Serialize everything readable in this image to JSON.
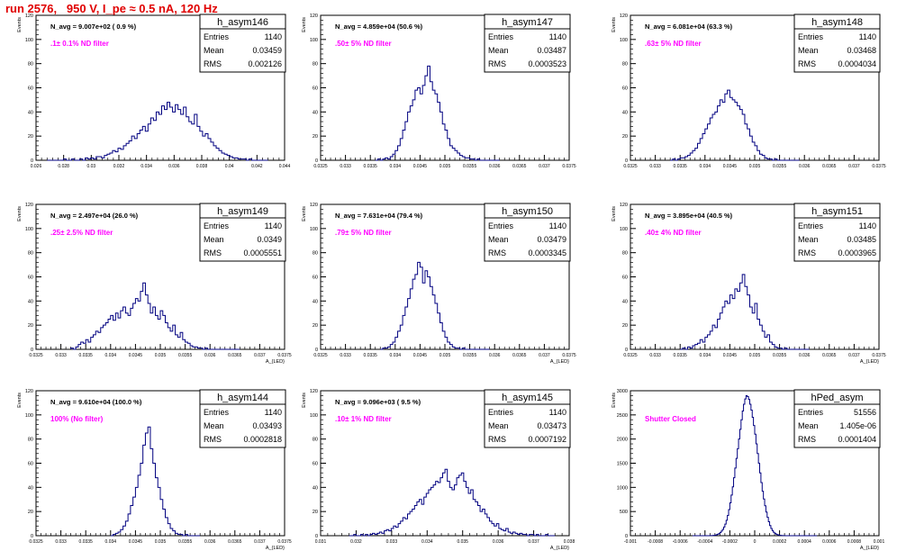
{
  "page_title": "run 2576,   950 V, I_pe ≈ 0.5 nA, 120 Hz",
  "colors": {
    "histogram": "#000080",
    "annotation": "#ff00ff",
    "title": "#e00000"
  },
  "chart_data": [
    {
      "type": "bar",
      "name": "h_asym146",
      "stats": {
        "entries": "1140",
        "mean": "0.03459",
        "rms": "0.002126"
      },
      "n_avg": "N_avg = 9.007e+02 ( 0.9 %)",
      "filter": ".1± 0.1% ND filter",
      "xlim": [
        0.026,
        0.044
      ],
      "ylim": [
        0,
        120
      ],
      "xticks": [
        0.026,
        0.028,
        0.03,
        0.032,
        0.034,
        0.036,
        0.038,
        0.04,
        0.042,
        0.044
      ],
      "xticklabels": [
        "0.026",
        "0.028",
        "0.03",
        "0.032",
        "0.034",
        "0.036",
        "0.038",
        "0.04",
        "0.042",
        "0.044"
      ],
      "yticks": [
        0,
        20,
        40,
        60,
        80,
        100,
        120
      ],
      "ylabel": "Events",
      "xlabel": "",
      "bin_edges": [
        0.0268,
        0.0428
      ],
      "values": [
        0,
        0,
        0,
        0,
        0,
        0,
        1,
        0,
        0,
        1,
        0,
        0,
        1,
        0,
        2,
        1,
        2,
        1,
        3,
        3,
        2,
        4,
        5,
        6,
        8,
        7,
        10,
        9,
        12,
        14,
        16,
        20,
        18,
        22,
        25,
        28,
        24,
        30,
        35,
        33,
        40,
        38,
        45,
        42,
        48,
        44,
        40,
        46,
        42,
        38,
        44,
        36,
        32,
        30,
        38,
        28,
        24,
        20,
        22,
        18,
        15,
        12,
        10,
        8,
        6,
        5,
        4,
        3,
        2,
        2,
        1,
        1,
        1,
        0,
        1,
        0,
        0,
        0,
        0,
        0,
        0
      ]
    },
    {
      "type": "bar",
      "name": "h_asym147",
      "stats": {
        "entries": "1140",
        "mean": "0.03487",
        "rms": "0.0003523"
      },
      "n_avg": "N_avg = 4.859e+04 (50.6 %)",
      "filter": ".50± 5% ND filter",
      "xlim": [
        0.0325,
        0.0375
      ],
      "ylim": [
        0,
        120
      ],
      "xticks": [
        0.0325,
        0.033,
        0.0335,
        0.034,
        0.0345,
        0.035,
        0.0355,
        0.036,
        0.0365,
        0.037,
        0.0375
      ],
      "xticklabels": [
        "0.0325",
        "0.033",
        "0.0335",
        "0.034",
        "0.0345",
        "0.035",
        "0.0355",
        "0.036",
        "0.0365",
        "0.037",
        "0.0375"
      ],
      "yticks": [
        0,
        20,
        40,
        60,
        80,
        100,
        120
      ],
      "ylabel": "Events",
      "xlabel": "",
      "bin_edges": [
        0.0336,
        0.0361
      ],
      "values": [
        0,
        1,
        0,
        1,
        2,
        1,
        3,
        5,
        8,
        12,
        18,
        25,
        32,
        40,
        45,
        50,
        58,
        60,
        55,
        62,
        70,
        78,
        65,
        58,
        55,
        48,
        40,
        30,
        25,
        18,
        12,
        10,
        8,
        6,
        4,
        3,
        2,
        2,
        1,
        1,
        0,
        1,
        0,
        0,
        0,
        0,
        0,
        0,
        0,
        0
      ]
    },
    {
      "type": "bar",
      "name": "h_asym148",
      "stats": {
        "entries": "1140",
        "mean": "0.03468",
        "rms": "0.0004034"
      },
      "n_avg": "N_avg = 6.081e+04 (63.3 %)",
      "filter": ".63± 5% ND filter",
      "xlim": [
        0.0325,
        0.0375
      ],
      "ylim": [
        0,
        120
      ],
      "xticks": [
        0.0325,
        0.033,
        0.0335,
        0.034,
        0.0345,
        0.035,
        0.0355,
        0.036,
        0.0365,
        0.037,
        0.0375
      ],
      "xticklabels": [
        "0.0325",
        "0.033",
        "0.0335",
        "0.034",
        "0.0345",
        "0.035",
        "0.0355",
        "0.036",
        "0.0365",
        "0.037",
        "0.0375"
      ],
      "yticks": [
        0,
        20,
        40,
        60,
        80,
        100,
        120
      ],
      "ylabel": "Events",
      "xlabel": "",
      "bin_edges": [
        0.0333,
        0.0359
      ],
      "values": [
        0,
        1,
        0,
        1,
        2,
        2,
        3,
        4,
        6,
        8,
        10,
        14,
        18,
        22,
        26,
        30,
        35,
        38,
        40,
        45,
        50,
        48,
        55,
        58,
        52,
        50,
        48,
        45,
        42,
        38,
        30,
        26,
        20,
        15,
        12,
        8,
        5,
        4,
        2,
        1,
        1,
        0,
        1,
        0,
        0,
        0,
        0,
        0,
        0,
        0,
        0,
        0
      ]
    },
    {
      "type": "bar",
      "name": "h_asym149",
      "stats": {
        "entries": "1140",
        "mean": "0.0349",
        "rms": "0.0005551"
      },
      "n_avg": "N_avg = 2.497e+04 (26.0 %)",
      "filter": ".25± 2.5% ND filter",
      "xlim": [
        0.0325,
        0.0375
      ],
      "ylim": [
        0,
        120
      ],
      "xticks": [
        0.0325,
        0.033,
        0.0335,
        0.034,
        0.0345,
        0.035,
        0.0355,
        0.036,
        0.0365,
        0.037,
        0.0375
      ],
      "xticklabels": [
        "0.0325",
        "0.033",
        "0.0335",
        "0.034",
        "0.0345",
        "0.035",
        "0.0355",
        "0.036",
        "0.0365",
        "0.037",
        "0.0375"
      ],
      "yticks": [
        0,
        20,
        40,
        60,
        80,
        100,
        120
      ],
      "ylabel": "Events",
      "xlabel": "A_{LED}",
      "bin_edges": [
        0.0332,
        0.0366
      ],
      "values": [
        1,
        0,
        2,
        4,
        6,
        5,
        8,
        6,
        10,
        12,
        15,
        14,
        18,
        20,
        22,
        25,
        28,
        24,
        30,
        26,
        32,
        35,
        30,
        28,
        34,
        38,
        42,
        40,
        48,
        55,
        45,
        38,
        30,
        35,
        28,
        25,
        32,
        28,
        22,
        18,
        15,
        20,
        12,
        10,
        14,
        8,
        6,
        5,
        3,
        2,
        2,
        1,
        1,
        0,
        1,
        0,
        0,
        0,
        0,
        0,
        0,
        0,
        0,
        0,
        0,
        0,
        0,
        0
      ]
    },
    {
      "type": "bar",
      "name": "h_asym150",
      "stats": {
        "entries": "1140",
        "mean": "0.03479",
        "rms": "0.0003345"
      },
      "n_avg": "N_avg = 7.631e+04 (79.4 %)",
      "filter": ".79± 5% ND filter",
      "xlim": [
        0.0325,
        0.0375
      ],
      "ylim": [
        0,
        120
      ],
      "xticks": [
        0.0325,
        0.033,
        0.0335,
        0.034,
        0.0345,
        0.035,
        0.0355,
        0.036,
        0.0365,
        0.037,
        0.0375
      ],
      "xticklabels": [
        "0.0325",
        "0.033",
        "0.0335",
        "0.034",
        "0.0345",
        "0.035",
        "0.0355",
        "0.036",
        "0.0365",
        "0.037",
        "0.0375"
      ],
      "yticks": [
        0,
        20,
        40,
        60,
        80,
        100,
        120
      ],
      "ylabel": "Events",
      "xlabel": "A_{LED}",
      "bin_edges": [
        0.0337,
        0.0359
      ],
      "values": [
        0,
        1,
        1,
        2,
        4,
        6,
        10,
        15,
        20,
        28,
        35,
        42,
        50,
        58,
        62,
        72,
        68,
        55,
        65,
        60,
        52,
        45,
        38,
        30,
        22,
        15,
        10,
        6,
        4,
        2,
        1,
        1,
        0,
        1,
        0,
        0,
        0,
        0,
        0,
        0,
        0,
        0,
        0,
        0
      ]
    },
    {
      "type": "bar",
      "name": "h_asym151",
      "stats": {
        "entries": "1140",
        "mean": "0.03485",
        "rms": "0.0003965"
      },
      "n_avg": "N_avg = 3.895e+04 (40.5 %)",
      "filter": ".40± 4% ND filter",
      "xlim": [
        0.0325,
        0.0375
      ],
      "ylim": [
        0,
        120
      ],
      "xticks": [
        0.0325,
        0.033,
        0.0335,
        0.034,
        0.0345,
        0.035,
        0.0355,
        0.036,
        0.0365,
        0.037,
        0.0375
      ],
      "xticklabels": [
        "0.0325",
        "0.033",
        "0.0335",
        "0.034",
        "0.0345",
        "0.035",
        "0.0355",
        "0.036",
        "0.0365",
        "0.037",
        "0.0375"
      ],
      "yticks": [
        0,
        20,
        40,
        60,
        80,
        100,
        120
      ],
      "ylabel": "Events",
      "xlabel": "A_{LED}",
      "bin_edges": [
        0.0335,
        0.0361
      ],
      "values": [
        0,
        1,
        0,
        2,
        1,
        3,
        4,
        5,
        8,
        6,
        10,
        12,
        15,
        20,
        18,
        25,
        30,
        35,
        40,
        38,
        45,
        42,
        50,
        48,
        55,
        62,
        52,
        45,
        35,
        30,
        38,
        25,
        20,
        15,
        10,
        12,
        6,
        4,
        2,
        1,
        1,
        0,
        1,
        0,
        0,
        0,
        0,
        0,
        0,
        0,
        0,
        0
      ]
    },
    {
      "type": "bar",
      "name": "h_asym144",
      "stats": {
        "entries": "1140",
        "mean": "0.03493",
        "rms": "0.0002818"
      },
      "n_avg": "N_avg = 9.610e+04 (100.0 %)",
      "filter": "100% (No filter)",
      "xlim": [
        0.0325,
        0.0375
      ],
      "ylim": [
        0,
        120
      ],
      "xticks": [
        0.0325,
        0.033,
        0.0335,
        0.034,
        0.0345,
        0.035,
        0.0355,
        0.036,
        0.0365,
        0.037,
        0.0375
      ],
      "xticklabels": [
        "0.0325",
        "0.033",
        "0.0335",
        "0.034",
        "0.0345",
        "0.035",
        "0.0355",
        "0.036",
        "0.0365",
        "0.037",
        "0.0375"
      ],
      "yticks": [
        0,
        20,
        40,
        60,
        80,
        100,
        120
      ],
      "ylabel": "Events",
      "xlabel": "A_{LED}",
      "bin_edges": [
        0.034,
        0.0358
      ],
      "values": [
        0,
        1,
        2,
        3,
        5,
        8,
        12,
        18,
        25,
        32,
        40,
        50,
        60,
        75,
        85,
        90,
        72,
        60,
        48,
        40,
        30,
        22,
        15,
        10,
        6,
        4,
        2,
        1,
        1,
        0,
        1,
        0,
        0,
        0,
        0,
        0
      ]
    },
    {
      "type": "bar",
      "name": "h_asym145",
      "stats": {
        "entries": "1140",
        "mean": "0.03473",
        "rms": "0.0007192"
      },
      "n_avg": "N_avg = 9.096e+03 ( 9.5 %)",
      "filter": ".10± 1% ND filter",
      "xlim": [
        0.031,
        0.038
      ],
      "ylim": [
        0,
        120
      ],
      "xticks": [
        0.031,
        0.032,
        0.033,
        0.034,
        0.035,
        0.036,
        0.037,
        0.038
      ],
      "xticklabels": [
        "0.031",
        "0.032",
        "0.033",
        "0.034",
        "0.035",
        "0.036",
        "0.037",
        "0.038"
      ],
      "yticks": [
        0,
        20,
        40,
        60,
        80,
        100,
        120
      ],
      "ylabel": "Events",
      "xlabel": "A_{LED}",
      "bin_edges": [
        0.0318,
        0.0376
      ],
      "values": [
        0,
        0,
        1,
        0,
        0,
        1,
        0,
        1,
        0,
        1,
        2,
        1,
        2,
        3,
        2,
        4,
        5,
        4,
        6,
        8,
        7,
        10,
        12,
        15,
        14,
        18,
        20,
        22,
        25,
        28,
        30,
        26,
        32,
        35,
        38,
        40,
        42,
        45,
        44,
        48,
        52,
        55,
        45,
        40,
        38,
        42,
        48,
        50,
        52,
        45,
        40,
        35,
        38,
        30,
        28,
        25,
        20,
        22,
        18,
        15,
        12,
        10,
        8,
        10,
        6,
        5,
        4,
        6,
        3,
        2,
        3,
        2,
        1,
        2,
        1,
        1,
        0,
        1,
        1,
        0,
        1,
        0,
        0,
        0,
        1,
        0,
        0,
        0
      ]
    },
    {
      "type": "bar",
      "name": "hPed_asym",
      "stats": {
        "entries": "51556",
        "mean": "1.405e-06",
        "rms": "0.0001404"
      },
      "n_avg": "",
      "filter": "Shutter Closed",
      "xlim": [
        -0.001,
        0.001
      ],
      "ylim": [
        0,
        3000
      ],
      "xticks": [
        -0.001,
        -0.0008,
        -0.0006,
        -0.0004,
        -0.0002,
        0,
        0.0002,
        0.0004,
        0.0006,
        0.0008,
        0.001
      ],
      "xticklabels": [
        "-0.001",
        "-0.0008",
        "-0.0006",
        "-0.0004",
        "-0.0002",
        "0",
        "0.0002",
        "0.0004",
        "0.0006",
        "0.0008",
        "0.001"
      ],
      "yticks": [
        0,
        500,
        1000,
        1500,
        2000,
        2500,
        3000
      ],
      "ylabel": "Events",
      "xlabel": "A_{LED}",
      "bin_edges": [
        -0.0005,
        0.0005
      ],
      "values": [
        0,
        0,
        0,
        0,
        0,
        0,
        0,
        0,
        0,
        0,
        0,
        0,
        1,
        1,
        2,
        3,
        5,
        8,
        12,
        20,
        30,
        45,
        65,
        95,
        130,
        180,
        240,
        320,
        420,
        540,
        680,
        840,
        1010,
        1200,
        1400,
        1600,
        1800,
        2000,
        2200,
        2400,
        2580,
        2720,
        2830,
        2900,
        2880,
        2820,
        2720,
        2600,
        2450,
        2280,
        2100,
        1900,
        1700,
        1500,
        1300,
        1100,
        920,
        760,
        620,
        490,
        380,
        290,
        210,
        150,
        105,
        70,
        48,
        32,
        20,
        12,
        8,
        5,
        3,
        2,
        1,
        1,
        0,
        0,
        0,
        0,
        0,
        0,
        0,
        0,
        0,
        0,
        0,
        0,
        0,
        0,
        0,
        0,
        0,
        0,
        0,
        0,
        0,
        0,
        0,
        0
      ]
    }
  ]
}
